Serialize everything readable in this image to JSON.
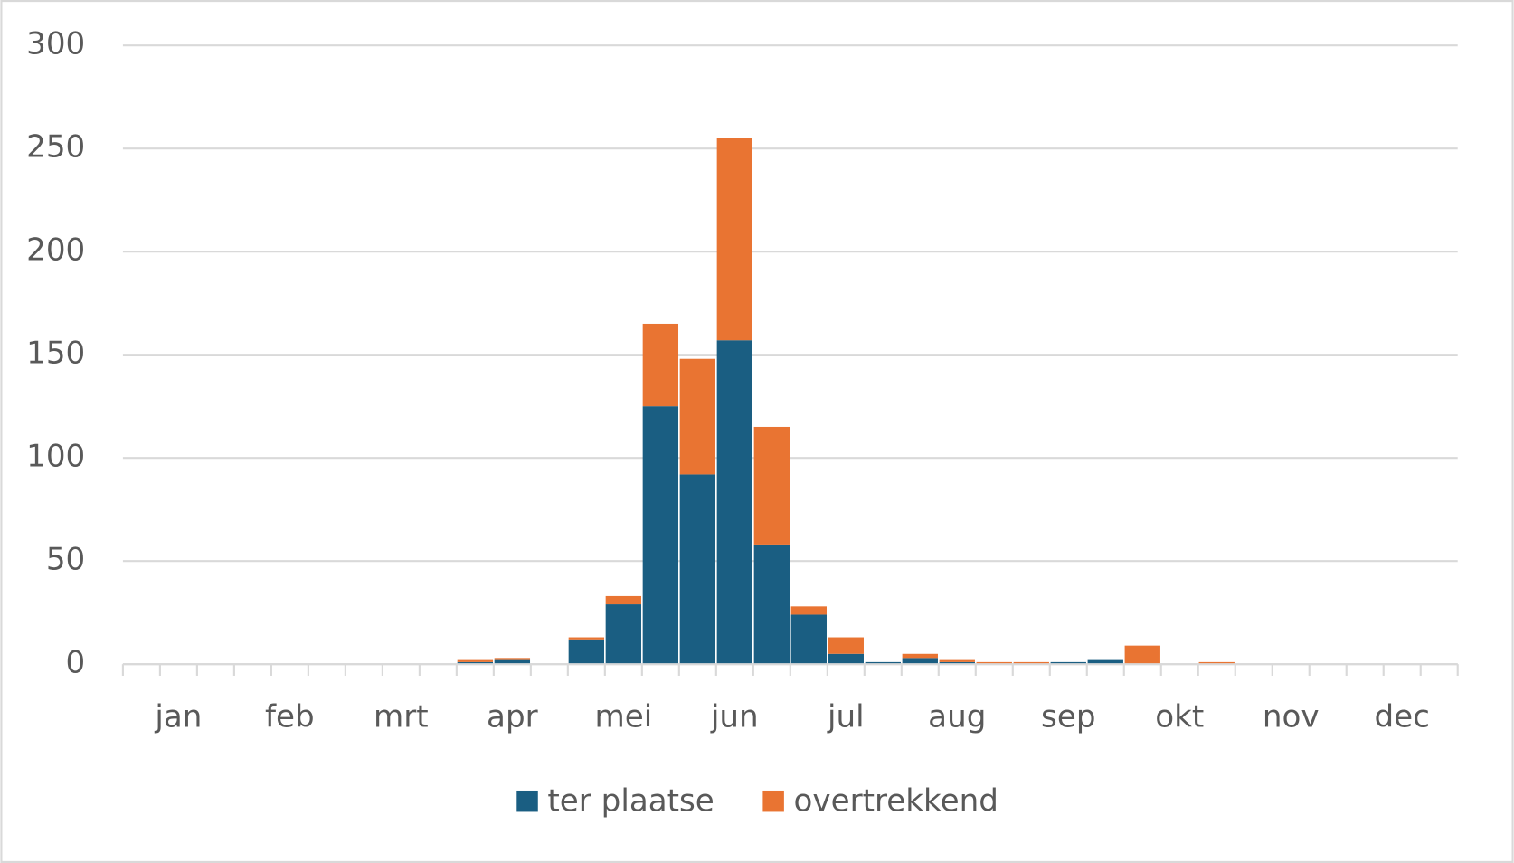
{
  "chart_data": {
    "type": "stacked_bar",
    "categories": [
      null,
      "jan",
      null,
      null,
      "feb",
      null,
      null,
      "mrt",
      null,
      null,
      "apr",
      null,
      null,
      "mei",
      null,
      null,
      "jun",
      null,
      null,
      "jul",
      null,
      null,
      "aug",
      null,
      null,
      "sep",
      null,
      null,
      "okt",
      null,
      null,
      "nov",
      null,
      null,
      "dec",
      null
    ],
    "series": [
      {
        "name": "ter plaatse",
        "color": "#1a5e82",
        "values": [
          0,
          0,
          0,
          0,
          0,
          0,
          0,
          0,
          0,
          1,
          2,
          0,
          12,
          29,
          125,
          92,
          157,
          58,
          24,
          5,
          1,
          3,
          1,
          0,
          0,
          1,
          2,
          0,
          0,
          0,
          0,
          0,
          0,
          0,
          0,
          0
        ]
      },
      {
        "name": "overtrekkend",
        "color": "#e97432",
        "values": [
          0,
          0,
          0,
          0,
          0,
          0,
          0,
          0,
          0,
          1,
          1,
          0,
          1,
          4,
          40,
          56,
          98,
          57,
          4,
          8,
          0,
          2,
          1,
          1,
          1,
          0,
          0,
          9,
          0,
          1,
          0,
          0,
          0,
          0,
          0,
          0
        ]
      }
    ],
    "ylim": [
      0,
      300
    ],
    "yticks": [
      0,
      50,
      100,
      150,
      200,
      250,
      300
    ],
    "grid": true,
    "legend": "bottom"
  }
}
